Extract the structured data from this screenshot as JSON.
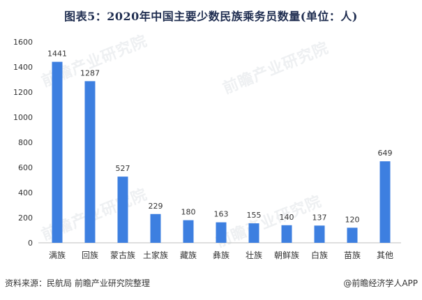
{
  "title": "图表5：2020年中国主要少数民族乘务员数量(单位：人)",
  "watermark": "前瞻产业研究院",
  "footer": {
    "source": "资料来源：民航局 前瞻产业研究院整理",
    "credit": "@前瞻经济学人APP"
  },
  "colors": {
    "bar": "#3d7fe0",
    "axis": "#bfbfbf",
    "text": "#333333"
  },
  "chart_data": {
    "type": "bar",
    "title": "图表5：2020年中国主要少数民族乘务员数量(单位：人)",
    "categories": [
      "满族",
      "回族",
      "蒙古族",
      "土家族",
      "藏族",
      "彝族",
      "壮族",
      "朝鲜族",
      "白族",
      "苗族",
      "其他"
    ],
    "values": [
      1441,
      1287,
      527,
      229,
      180,
      163,
      155,
      140,
      137,
      120,
      649
    ],
    "yticks": [
      0,
      200,
      400,
      600,
      800,
      1000,
      1200,
      1400,
      1600
    ],
    "ylim": [
      0,
      1600
    ],
    "xlabel": "",
    "ylabel": "",
    "grid": false,
    "legend": "none",
    "data_labels": true
  }
}
